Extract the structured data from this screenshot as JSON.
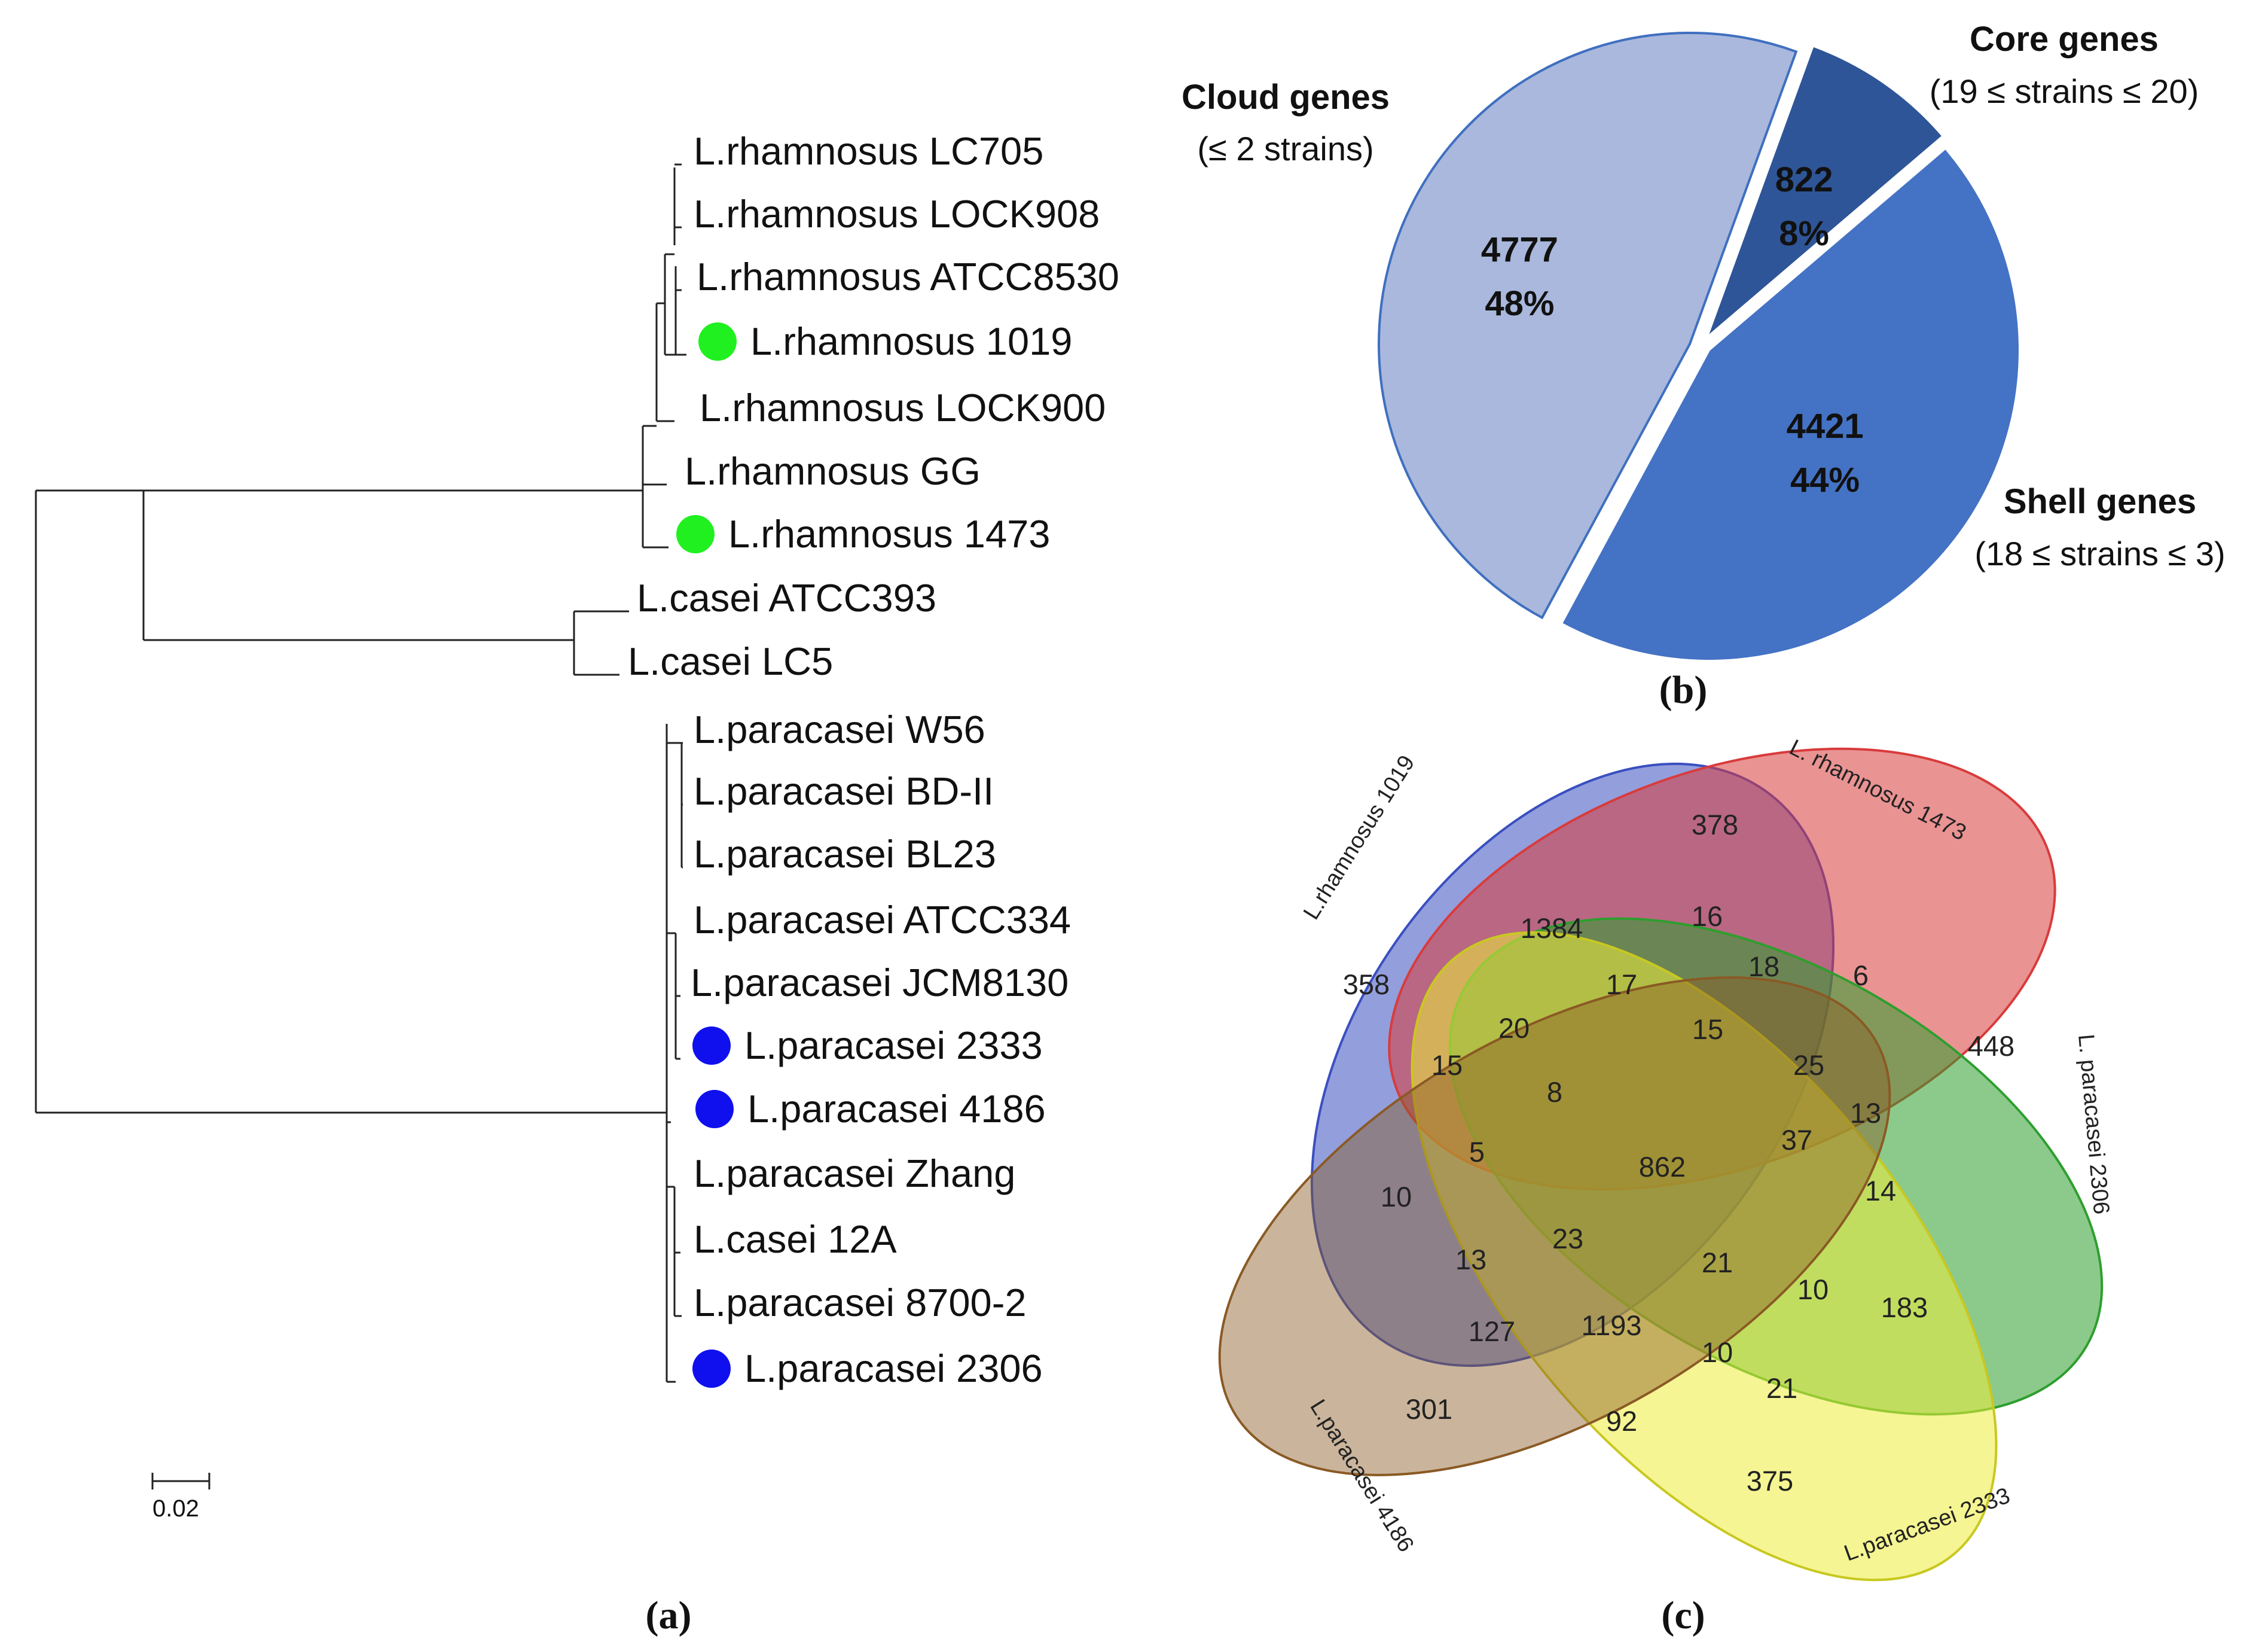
{
  "figure": {
    "panel_a": {
      "label": "(a)",
      "scale_bar": "0.02",
      "tips": [
        {
          "name": "L.rhamnosus LC705",
          "marker": null
        },
        {
          "name": "L.rhamnosus LOCK908",
          "marker": null
        },
        {
          "name": "L.rhamnosus ATCC8530",
          "marker": null
        },
        {
          "name": "L.rhamnosus 1019",
          "marker": "#20f020"
        },
        {
          "name": "L.rhamnosus LOCK900",
          "marker": null
        },
        {
          "name": "L.rhamnosus GG",
          "marker": null
        },
        {
          "name": "L.rhamnosus 1473",
          "marker": "#20f020"
        },
        {
          "name": "L.casei ATCC393",
          "marker": null
        },
        {
          "name": "L.casei LC5",
          "marker": null
        },
        {
          "name": "L.paracasei W56",
          "marker": null
        },
        {
          "name": "L.paracasei BD-II",
          "marker": null
        },
        {
          "name": "L.paracasei BL23",
          "marker": null
        },
        {
          "name": "L.paracasei ATCC334",
          "marker": null
        },
        {
          "name": "L.paracasei JCM8130",
          "marker": null
        },
        {
          "name": "L.paracasei 2333",
          "marker": "#1010ee"
        },
        {
          "name": "L.paracasei 4186",
          "marker": "#1010ee"
        },
        {
          "name": "L.paracasei Zhang",
          "marker": null
        },
        {
          "name": "L.casei 12A",
          "marker": null
        },
        {
          "name": "L.paracasei 8700-2",
          "marker": null
        },
        {
          "name": "L.paracasei 2306",
          "marker": "#1010ee"
        }
      ]
    },
    "panel_b": {
      "label": "(b)",
      "chart_data": {
        "type": "pie",
        "slices": [
          {
            "name": "Core genes",
            "condition": "(19 ≤ strains ≤ 20)",
            "value": 822,
            "percent": "8%",
            "color": "#2e5597"
          },
          {
            "name": "Shell genes",
            "condition": "(18 ≤ strains ≤ 3)",
            "value": 4421,
            "percent": "44%",
            "color": "#4472c4"
          },
          {
            "name": "Cloud genes",
            "condition": "(≤ 2 strains)",
            "value": 4777,
            "percent": "48%",
            "color": "#a9b8dc"
          }
        ]
      }
    },
    "panel_c": {
      "label": "(c)",
      "sets": [
        {
          "name": "L.rhamnosus 1019",
          "color": "#3a4fc0"
        },
        {
          "name": "L. rhamnosus 1473",
          "color": "#d93b3b"
        },
        {
          "name": "L. paracasei 2306",
          "color": "#2e9e2e"
        },
        {
          "name": "L.paracasei 2333",
          "color": "#eded3a"
        },
        {
          "name": "L.paracasei 4186",
          "color": "#8a5a24"
        }
      ],
      "counts": [
        "378",
        "1384",
        "16",
        "18",
        "6",
        "358",
        "17",
        "15",
        "20",
        "25",
        "448",
        "15",
        "8",
        "13",
        "37",
        "5",
        "862",
        "14",
        "10",
        "23",
        "21",
        "10",
        "183",
        "13",
        "127",
        "1193",
        "10",
        "21",
        "301",
        "92",
        "375"
      ]
    }
  }
}
